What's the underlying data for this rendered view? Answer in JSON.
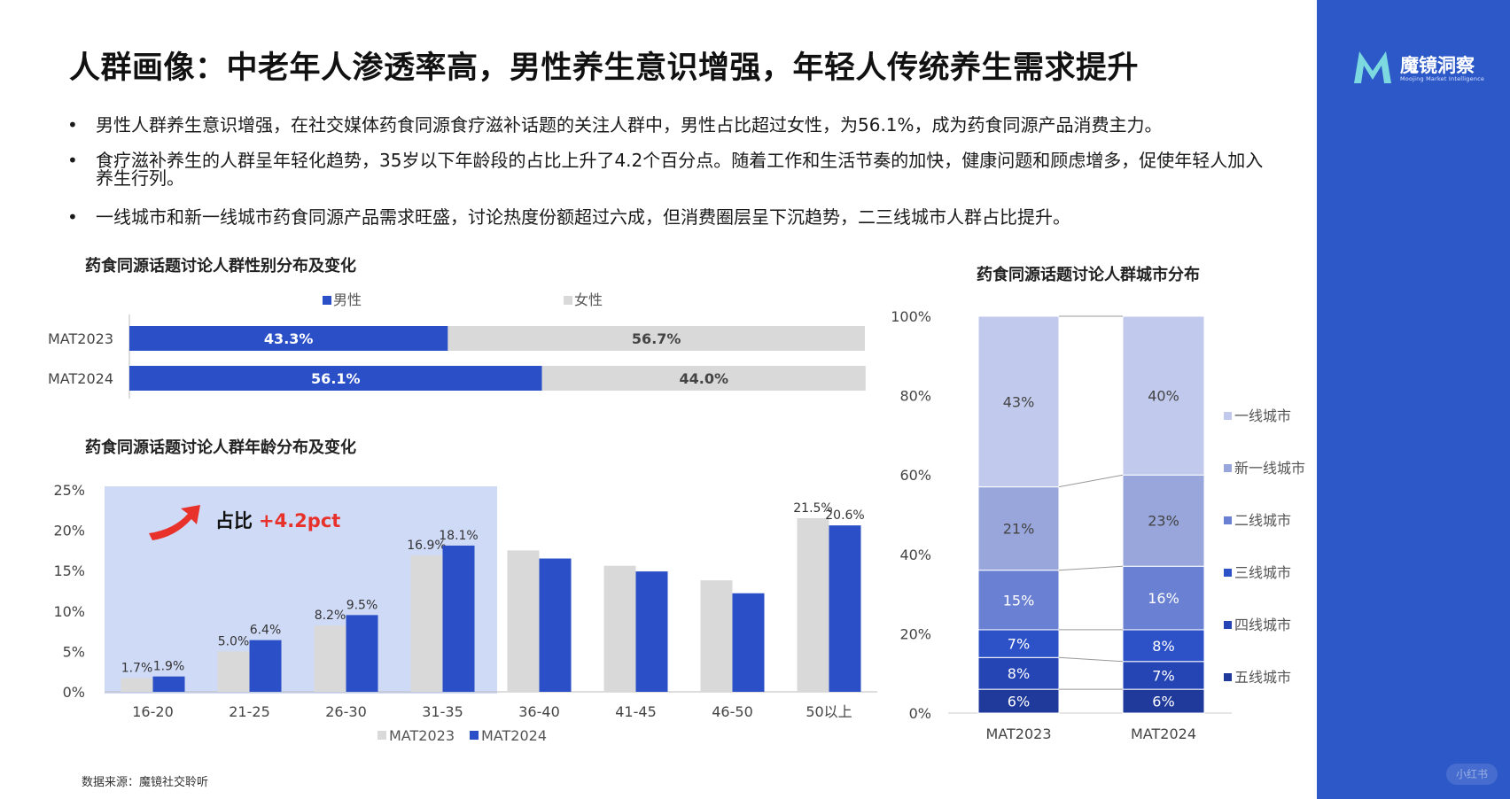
{
  "title": "人群画像：中老年人渗透率高，男性养生意识增强，年轻人传统养生需求提升",
  "bullets": [
    "男性人群养生意识增强，在社交媒体药食同源食疗滋补话题的关注人群中，男性占比超过女性，为56.1%，成为药食同源产品消费主力。",
    "食疗滋补养生的人群呈年轻化趋势，35岁以下年龄段的占比上升了4.2个百分点。随着工作和生活节奏的加快，健康问题和顾虑增多，促使年轻人加入养生行列。",
    "一线城市和新一线城市药食同源产品需求旺盛，讨论热度份额超过六成，但消费圈层呈下沉趋势，二三线城市人群占比提升。"
  ],
  "bullet_symbol": "•",
  "logo": {
    "text": "魔镜洞察",
    "sub": "Moojing Market Intelligence",
    "icon": "moojing-m-logo-icon"
  },
  "footer": "数据来源：魔镜社交聆听",
  "watermark": "小红书",
  "colors": {
    "sidebar": "#2c58c8",
    "male": "#2a4fc7",
    "female": "#d9d9d9",
    "highlight": "#cfdaf6",
    "accent_red": "#e8312a"
  },
  "chart_data": [
    {
      "type": "bar",
      "orientation": "horizontal-stacked",
      "title": "药食同源话题讨论人群性别分布及变化",
      "categories": [
        "MAT2023",
        "MAT2024"
      ],
      "series": [
        {
          "name": "男性",
          "values": [
            43.3,
            56.1
          ],
          "labels": [
            "43.3%",
            "56.1%"
          ]
        },
        {
          "name": "女性",
          "values": [
            56.7,
            44.0
          ],
          "labels": [
            "56.7%",
            "44.0%"
          ]
        }
      ],
      "legend": "top"
    },
    {
      "type": "bar",
      "title": "药食同源话题讨论人群年龄分布及变化",
      "categories": [
        "16-20",
        "21-25",
        "26-30",
        "31-35",
        "36-40",
        "41-45",
        "46-50",
        "50以上"
      ],
      "series": [
        {
          "name": "MAT2023",
          "values": [
            1.7,
            5.0,
            8.2,
            16.9,
            17.5,
            15.6,
            13.8,
            21.5
          ],
          "labels": [
            "1.7%",
            "5.0%",
            "8.2%",
            "16.9%",
            "",
            "",
            "",
            "21.5%"
          ]
        },
        {
          "name": "MAT2024",
          "values": [
            1.9,
            6.4,
            9.5,
            18.1,
            16.5,
            14.9,
            12.2,
            20.6
          ],
          "labels": [
            "1.9%",
            "6.4%",
            "9.5%",
            "18.1%",
            "",
            "",
            "",
            "20.6%"
          ]
        }
      ],
      "ylim": [
        0,
        25
      ],
      "yticks": [
        "0%",
        "5%",
        "10%",
        "15%",
        "20%",
        "25%"
      ],
      "annotation": {
        "prefix": "占比",
        "value": "+4.2pct",
        "highlight_range": [
          "16-20",
          "31-35"
        ]
      },
      "legend": "bottom"
    },
    {
      "type": "bar",
      "orientation": "vertical-stacked-100",
      "title": "药食同源话题讨论人群城市分布",
      "categories": [
        "MAT2023",
        "MAT2024"
      ],
      "series": [
        {
          "name": "五线城市",
          "values": [
            6,
            6
          ],
          "labels": [
            "6%",
            "6%"
          ],
          "color": "#1f3a9b"
        },
        {
          "name": "四线城市",
          "values": [
            8,
            7
          ],
          "labels": [
            "8%",
            "7%"
          ],
          "color": "#2545b5"
        },
        {
          "name": "三线城市",
          "values": [
            7,
            8
          ],
          "labels": [
            "7%",
            "8%"
          ],
          "color": "#2d52c8"
        },
        {
          "name": "二线城市",
          "values": [
            15,
            16
          ],
          "labels": [
            "15%",
            "16%"
          ],
          "color": "#6a80d2"
        },
        {
          "name": "新一线城市",
          "values": [
            21,
            23
          ],
          "labels": [
            "21%",
            "23%"
          ],
          "color": "#98a6dc"
        },
        {
          "name": "一线城市",
          "values": [
            43,
            40
          ],
          "labels": [
            "43%",
            "40%"
          ],
          "color": "#c1c9ec"
        }
      ],
      "ylim": [
        0,
        100
      ],
      "yticks": [
        "0%",
        "20%",
        "40%",
        "60%",
        "80%",
        "100%"
      ],
      "legend": "right"
    }
  ]
}
